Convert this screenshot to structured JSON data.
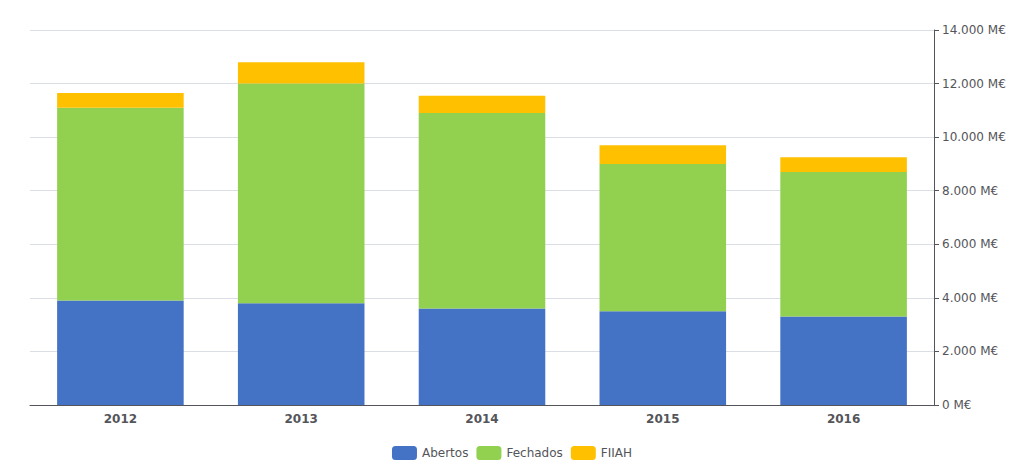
{
  "chart_data": {
    "type": "bar",
    "stacked": true,
    "categories": [
      "2012",
      "2013",
      "2014",
      "2015",
      "2016"
    ],
    "series": [
      {
        "name": "Abertos",
        "color": "#4472C4",
        "values": [
          3900,
          3800,
          3600,
          3500,
          3300
        ]
      },
      {
        "name": "Fechados",
        "color": "#92D050",
        "values": [
          7200,
          8200,
          7300,
          5500,
          5400
        ]
      },
      {
        "name": "FIIAH",
        "color": "#FFC000",
        "values": [
          550,
          800,
          650,
          700,
          550
        ]
      }
    ],
    "ylim": [
      0,
      14000
    ],
    "yticks": [
      {
        "value": 0,
        "label": "0 M€"
      },
      {
        "value": 2000,
        "label": "2.000 M€"
      },
      {
        "value": 4000,
        "label": "4.000 M€"
      },
      {
        "value": 6000,
        "label": "6.000 M€"
      },
      {
        "value": 8000,
        "label": "8.000 M€"
      },
      {
        "value": 10000,
        "label": "10.000 M€"
      },
      {
        "value": 12000,
        "label": "12.000 M€"
      },
      {
        "value": 14000,
        "label": "14.000 M€"
      }
    ],
    "grid": true,
    "legend": "bottom"
  }
}
